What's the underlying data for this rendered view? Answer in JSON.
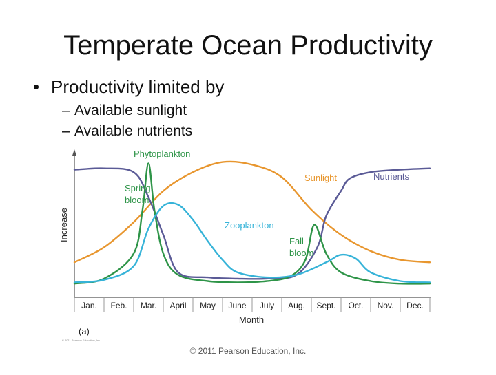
{
  "slide": {
    "title": "Temperate Ocean Productivity",
    "bullet": "Productivity limited by",
    "bullet_marker": "•",
    "sub_marker": "–",
    "subbullets": [
      "Available sunlight",
      "Available nutrients"
    ],
    "copyright": "© 2011 Pearson Education, Inc.",
    "figure_credit": "© 2011 Pearson Education, Inc."
  },
  "chart_data": {
    "type": "line",
    "figure_label": "(a)",
    "xlabel": "Month",
    "ylabel": "Increase",
    "categories": [
      "Jan.",
      "Feb.",
      "Mar.",
      "April",
      "May",
      "June",
      "July",
      "Aug.",
      "Sept.",
      "Oct.",
      "Nov.",
      "Dec."
    ],
    "xlim": [
      0.5,
      12.5
    ],
    "ylim": [
      0,
      100
    ],
    "grid": false,
    "series": [
      {
        "name": "Sunlight",
        "color": "#e8962e",
        "x": [
          0.5,
          1.5,
          2.5,
          3.5,
          4.5,
          5.5,
          6.5,
          7.5,
          8.5,
          9.5,
          10.5,
          11.5,
          12.5
        ],
        "y": [
          18,
          30,
          50,
          75,
          90,
          98,
          96,
          86,
          60,
          40,
          27,
          20,
          18
        ]
      },
      {
        "name": "Nutrients",
        "color": "#5a5a96",
        "x": [
          0.5,
          1.5,
          2.5,
          3.0,
          3.5,
          4.0,
          5.0,
          6.0,
          7.0,
          8.0,
          8.7,
          9.0,
          9.5,
          9.8,
          10.5,
          11.5,
          12.5
        ],
        "y": [
          92,
          93,
          90,
          70,
          40,
          10,
          6,
          5,
          5,
          8,
          30,
          55,
          75,
          85,
          90,
          92,
          93
        ]
      },
      {
        "name": "Phytoplankton",
        "color": "#2e9448",
        "x": [
          0.5,
          1.5,
          2.5,
          2.8,
          3.0,
          3.2,
          3.5,
          4.0,
          5.0,
          6.0,
          7.0,
          7.8,
          8.3,
          8.6,
          9.0,
          9.5,
          10.5,
          11.5,
          12.5
        ],
        "y": [
          1,
          5,
          25,
          60,
          97,
          60,
          25,
          8,
          3,
          2,
          3,
          7,
          20,
          48,
          25,
          10,
          3,
          1,
          1
        ]
      },
      {
        "name": "Zooplankton",
        "color": "#36b3d8",
        "x": [
          0.5,
          1.5,
          2.5,
          3.0,
          3.5,
          4.0,
          4.5,
          5.0,
          5.5,
          6.0,
          7.0,
          8.0,
          9.0,
          9.5,
          10.0,
          10.5,
          11.5,
          12.5
        ],
        "y": [
          2,
          4,
          15,
          45,
          63,
          64,
          52,
          35,
          20,
          10,
          6,
          8,
          18,
          24,
          21,
          10,
          3,
          2
        ]
      }
    ],
    "annotations": [
      {
        "text": "Phytoplankton",
        "color": "#2e9448"
      },
      {
        "text": "Spring",
        "color": "#2e9448"
      },
      {
        "text": "bloom",
        "color": "#2e9448"
      },
      {
        "text": "Fall",
        "color": "#2e9448"
      },
      {
        "text": "bloom",
        "color": "#2e9448"
      },
      {
        "text": "Zooplankton",
        "color": "#36b3d8"
      },
      {
        "text": "Sunlight",
        "color": "#e8962e"
      },
      {
        "text": "Nutrients",
        "color": "#5a5a96"
      }
    ],
    "colors": {
      "axis": "#555555",
      "tick": "#999999",
      "tick_label": "#222222"
    }
  }
}
